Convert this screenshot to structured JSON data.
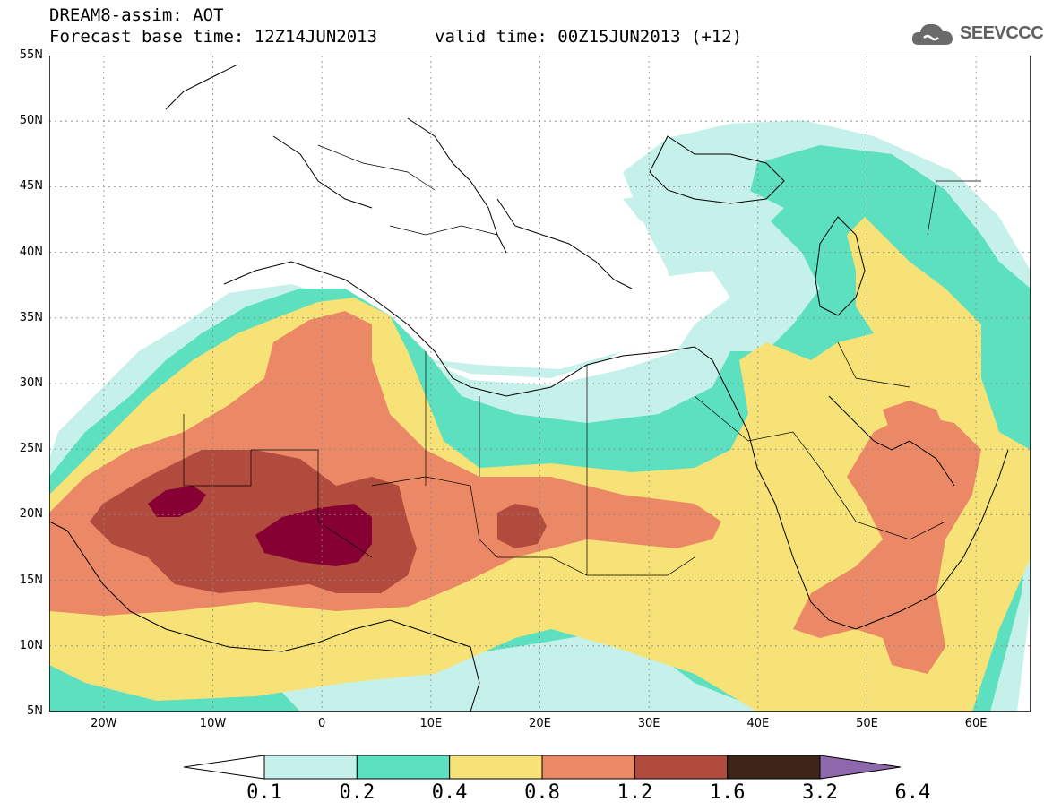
{
  "header": {
    "title": "DREAM8-assim: AOT",
    "base_time": "Forecast base time: 12Z14JUN2013",
    "valid_time": "valid time: 00Z15JUN2013 (+12)"
  },
  "logo": {
    "text": "SEEVCCC",
    "icon": "cloud-icon",
    "color": "#606060"
  },
  "map": {
    "lon_range": [
      -25,
      65
    ],
    "lat_range": [
      5,
      55
    ],
    "lat_labels": [
      "55N",
      "50N",
      "45N",
      "40N",
      "35N",
      "30N",
      "25N",
      "20N",
      "15N",
      "10N",
      "5N"
    ],
    "lon_labels": [
      "20W",
      "10W",
      "0",
      "10E",
      "20E",
      "30E",
      "40E",
      "50E",
      "60E"
    ],
    "grid": "dotted"
  },
  "colorbar": {
    "levels": [
      "0.1",
      "0.2",
      "0.4",
      "0.8",
      "1.2",
      "1.6",
      "3.2",
      "6.4"
    ],
    "colors": [
      "#c6f1ea",
      "#5ce0bf",
      "#f6e277",
      "#eb8866",
      "#b04b3e",
      "#860033",
      "#3d2618",
      "#8e68ad"
    ],
    "under_color": "#ffffff"
  }
}
